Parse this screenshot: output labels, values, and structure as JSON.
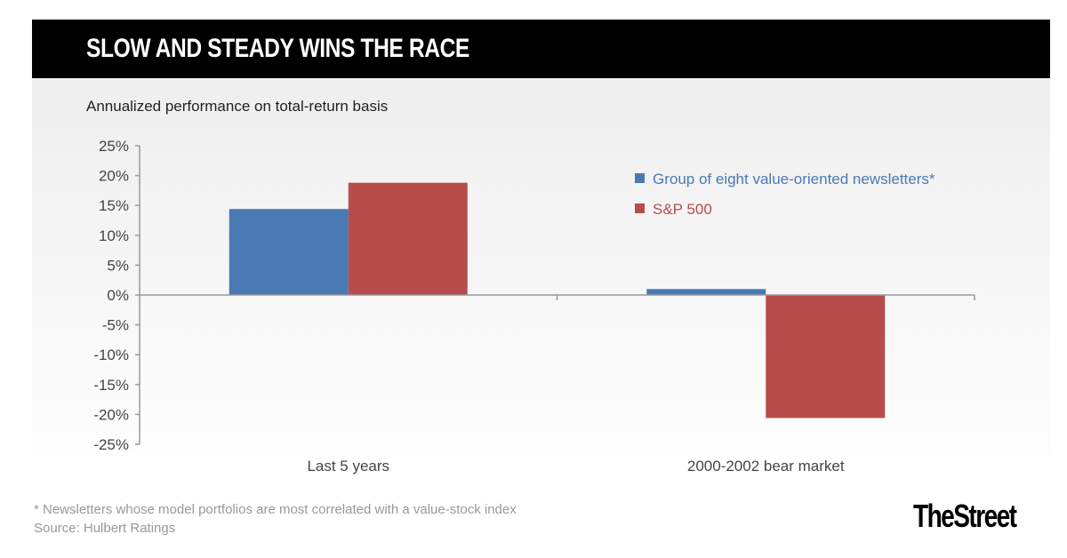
{
  "title": "SLOW AND STEADY WINS THE RACE",
  "footnote": "* Newsletters whose model portfolios are most correlated with a value-stock index",
  "source": "Source: Hulbert Ratings",
  "brand": "TheStreet",
  "chart_data": {
    "type": "bar",
    "title": "SLOW AND STEADY WINS THE RACE",
    "subtitle": "Annualized performance on total-return basis",
    "categories": [
      "Last 5 years",
      "2000-2002 bear market"
    ],
    "series": [
      {
        "name": "Group of eight value-oriented newsletters*",
        "color": "#4a7ab4",
        "values": [
          14.4,
          1.0
        ]
      },
      {
        "name": "S&P 500",
        "color": "#b84c4a",
        "values": [
          18.8,
          -20.6
        ]
      }
    ],
    "ylim": [
      -25,
      25
    ],
    "yticks": [
      25,
      20,
      15,
      10,
      5,
      0,
      -5,
      -10,
      -15,
      -20,
      -25
    ],
    "ytick_labels": [
      "25%",
      "20%",
      "15%",
      "10%",
      "5%",
      "0%",
      "-5%",
      "-10%",
      "-15%",
      "-20%",
      "-25%"
    ],
    "legend": "top-right",
    "grid": false
  }
}
